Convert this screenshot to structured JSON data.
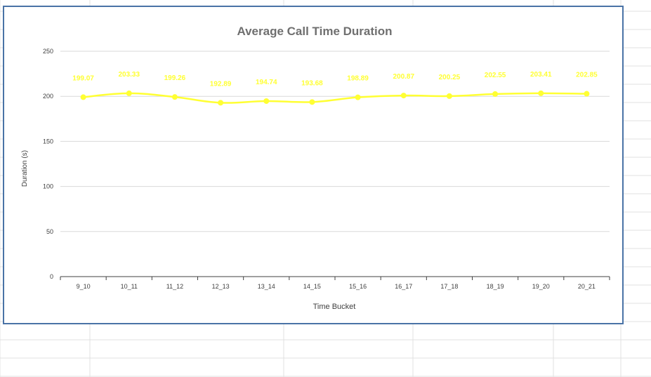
{
  "chart_data": {
    "type": "line",
    "title": "Average Call Time Duration",
    "xlabel": "Time Bucket",
    "ylabel": "Duration (s)",
    "categories": [
      "9_10",
      "10_11",
      "11_12",
      "12_13",
      "13_14",
      "14_15",
      "15_16",
      "16_17",
      "17_18",
      "18_19",
      "19_20",
      "20_21"
    ],
    "series": [
      {
        "values": [
          199.07,
          203.33,
          199.26,
          192.89,
          194.74,
          193.68,
          198.89,
          200.87,
          200.25,
          202.55,
          203.41,
          202.85
        ]
      }
    ],
    "yticks": [
      "0",
      "50",
      "100",
      "150",
      "200",
      "250"
    ],
    "ylim": [
      0,
      250
    ],
    "grid": true,
    "legend": "none",
    "data_labels": true
  },
  "colors": {
    "series": "#ffff33",
    "label": "#ffff33",
    "title": "#6f6f6f",
    "axis_text": "#404040",
    "gridline": "#d9d9d9",
    "frame": "#4a73a6",
    "sheet_grid": "#e1e1e1"
  }
}
